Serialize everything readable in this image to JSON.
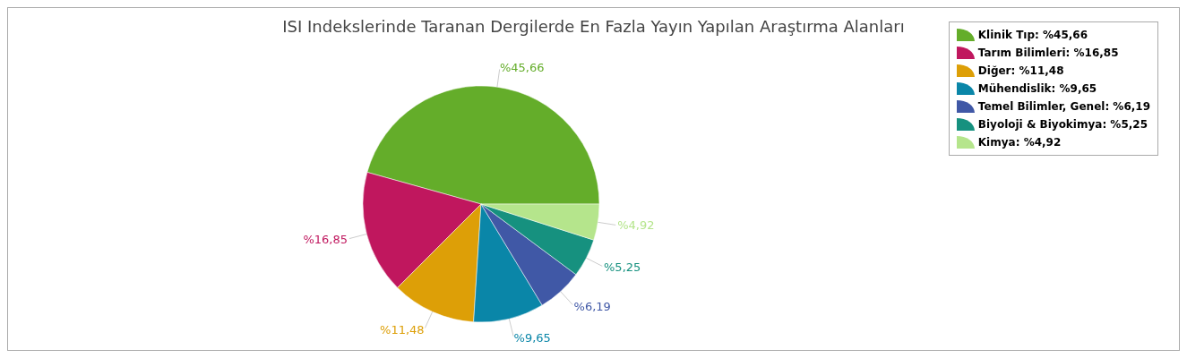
{
  "chart_data": {
    "type": "pie",
    "title": "ISI Indekslerinde Taranan Dergilerde En Fazla Yayın Yapılan Araştırma Alanları",
    "categories": [
      "Klinik Tıp: %45,66",
      "Tarım Bilimleri: %16,85",
      "Diğer: %11,48",
      "Mühendislik: %9,65",
      "Temel Bilimler, Genel: %6,19",
      "Biyoloji & Biyokimya: %5,25",
      "Kimya: %4,92"
    ],
    "values": [
      45.66,
      16.85,
      11.48,
      9.65,
      6.19,
      5.25,
      4.92
    ],
    "value_labels": [
      "%45,66",
      "%16,85",
      "%11,48",
      "%9,65",
      "%6,19",
      "%5,25",
      "%4,92"
    ],
    "colors": [
      "#64ad2a",
      "#c0175e",
      "#dd9f07",
      "#0a86a8",
      "#4058a6",
      "#16917f",
      "#b5e58c"
    ],
    "legend": "top right"
  }
}
